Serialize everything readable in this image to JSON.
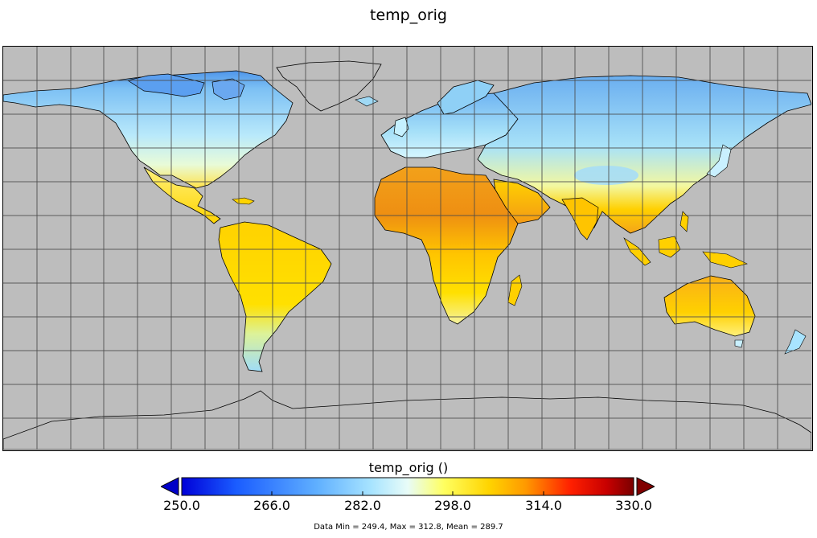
{
  "map": {
    "title": "temp_orig",
    "background_color": "#bdbdbd",
    "land_colors": {
      "polar": "#5aa2ef",
      "boreal": "#9fd9f5",
      "temperate": "#c9f0ff",
      "subtropical": "#ffe030",
      "tropical": "#ffd400",
      "desert": "#f39a14",
      "hot_desert": "#ec8a10"
    },
    "grid": true,
    "graticule_lines": "30 x 13"
  },
  "colorbar": {
    "title": "temp_orig ()",
    "min": 250.0,
    "max": 330.0,
    "extend": "both",
    "colormap": [
      "#0000d8",
      "#1a5cff",
      "#60b0ff",
      "#a8e4ff",
      "#d8f8ff",
      "#ffff60",
      "#ffd400",
      "#ff9a00",
      "#ff3000",
      "#e00000",
      "#7a0000"
    ],
    "tick_labels": [
      "250.0",
      "266.0",
      "282.0",
      "298.0",
      "314.0",
      "330.0"
    ],
    "tick_values": [
      250,
      266,
      282,
      298,
      314,
      330
    ]
  },
  "stats": {
    "text": "Data Min = 249.4, Max = 312.8, Mean = 289.7"
  }
}
